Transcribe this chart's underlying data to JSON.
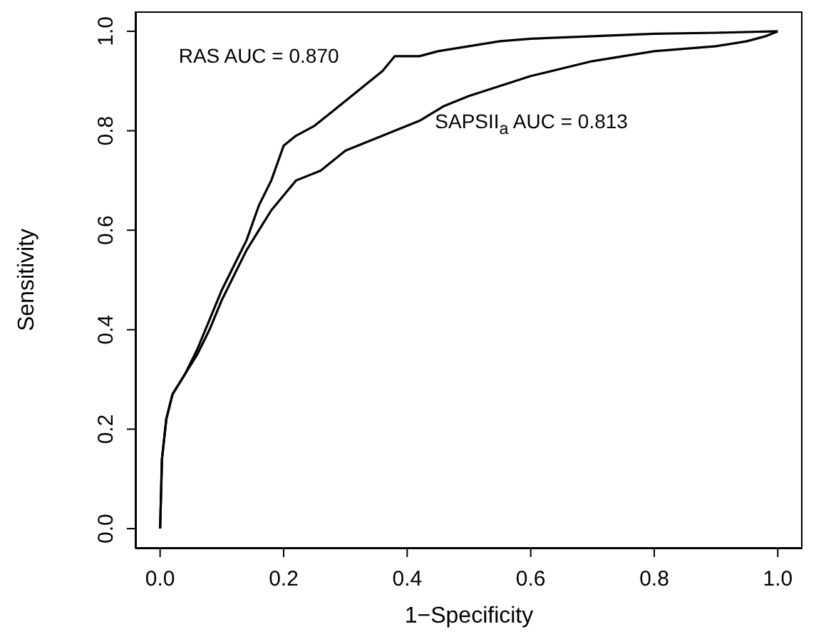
{
  "chart_data": {
    "type": "line",
    "xlabel": "1−Specificity",
    "ylabel": "Sensitivity",
    "xlim": [
      -0.04,
      1.04
    ],
    "ylim": [
      -0.04,
      1.04
    ],
    "xticks": [
      {
        "value": 0,
        "label": "0.0"
      },
      {
        "value": 0.2,
        "label": "0.2"
      },
      {
        "value": 0.4,
        "label": "0.4"
      },
      {
        "value": 0.6,
        "label": "0.6"
      },
      {
        "value": 0.8,
        "label": "0.8"
      },
      {
        "value": 1,
        "label": "1.0"
      }
    ],
    "yticks": [
      {
        "value": 0,
        "label": "0.0"
      },
      {
        "value": 0.2,
        "label": "0.2"
      },
      {
        "value": 0.4,
        "label": "0.4"
      },
      {
        "value": 0.6,
        "label": "0.6"
      },
      {
        "value": 0.8,
        "label": "0.8"
      },
      {
        "value": 1,
        "label": "1.0"
      }
    ],
    "grid": false,
    "legend": false,
    "marker": "none",
    "line_style": "solid",
    "annotations": [
      "RAS AUC = 0.870",
      "SAPSII$_{a}$ AUC = 0.813"
    ],
    "series": [
      {
        "color": "#000000",
        "x": [
          0,
          0.003,
          0.01,
          0.02,
          0.04,
          0.06,
          0.08,
          0.1,
          0.12,
          0.14,
          0.16,
          0.18,
          0.2,
          0.22,
          0.25,
          0.28,
          0.32,
          0.36,
          0.38,
          0.42,
          0.45,
          0.5,
          0.55,
          0.6,
          0.7,
          0.8,
          0.9,
          1
        ],
        "values": [
          0,
          0.14,
          0.22,
          0.27,
          0.31,
          0.36,
          0.42,
          0.48,
          0.53,
          0.58,
          0.65,
          0.7,
          0.77,
          0.79,
          0.81,
          0.84,
          0.88,
          0.92,
          0.95,
          0.95,
          0.96,
          0.97,
          0.98,
          0.985,
          0.99,
          0.995,
          0.997,
          1
        ]
      },
      {
        "color": "#000000",
        "x": [
          0,
          0.003,
          0.01,
          0.02,
          0.04,
          0.06,
          0.08,
          0.1,
          0.12,
          0.14,
          0.16,
          0.18,
          0.2,
          0.22,
          0.26,
          0.3,
          0.34,
          0.38,
          0.42,
          0.46,
          0.5,
          0.55,
          0.6,
          0.7,
          0.8,
          0.9,
          0.95,
          0.98,
          1
        ],
        "values": [
          0,
          0.14,
          0.22,
          0.27,
          0.31,
          0.35,
          0.4,
          0.46,
          0.51,
          0.56,
          0.6,
          0.64,
          0.67,
          0.7,
          0.72,
          0.76,
          0.78,
          0.8,
          0.82,
          0.85,
          0.87,
          0.89,
          0.91,
          0.94,
          0.96,
          0.97,
          0.98,
          0.99,
          1
        ]
      }
    ]
  }
}
